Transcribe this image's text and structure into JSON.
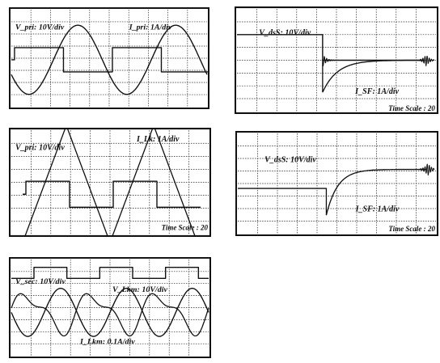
{
  "chart_data": [
    {
      "type": "line",
      "title": "",
      "grid": true,
      "grid_divisions": [
        10,
        8
      ],
      "labels": [
        "V_pri: 10V/div",
        "I_pri: 1A/div"
      ],
      "time_scale": "",
      "series": [
        {
          "kind": "square",
          "amplitude_div": 1,
          "cycles": 2
        },
        {
          "kind": "triangle",
          "amplitude_div": 3,
          "cycles": 2
        }
      ]
    },
    {
      "type": "line",
      "title": "",
      "grid": true,
      "grid_divisions": [
        10,
        8
      ],
      "labels": [
        "V_dsS: 10V/div",
        "I_SF: 1A/div",
        "Time Scale : 20"
      ],
      "time_scale": "Time Scale : 20",
      "series": [
        {
          "kind": "step-with-ringing",
          "level_before_div": 2,
          "level_after_div": 0
        },
        {
          "kind": "exponential-recovery",
          "start_div": -2.5,
          "end_div": 0
        }
      ]
    },
    {
      "type": "line",
      "title": "",
      "grid": true,
      "grid_divisions": [
        10,
        8
      ],
      "labels": [
        "V_pri: 10V/div",
        "I_Lk: 1A/div",
        "Time Scale : 20"
      ],
      "time_scale": "Time Scale : 20",
      "series": [
        {
          "kind": "triangle",
          "amplitude_div": 4.5,
          "cycles": 2
        },
        {
          "kind": "square",
          "amplitude_div": 1,
          "cycles": 2
        }
      ]
    },
    {
      "type": "line",
      "title": "",
      "grid": true,
      "grid_divisions": [
        10,
        8
      ],
      "labels": [
        "V_dsS: 10V/div",
        "I_SF: 1A/div",
        "Time Scale : 20"
      ],
      "time_scale": "Time Scale : 20",
      "series": [
        {
          "kind": "step-with-ringing",
          "level_before_div": 0,
          "level_after_div": 0
        },
        {
          "kind": "exponential-recovery",
          "start_div": -2.0,
          "end_div": 1.0
        }
      ]
    },
    {
      "type": "line",
      "title": "",
      "grid": true,
      "grid_divisions": [
        10,
        8
      ],
      "labels": [
        "V_sec: 10V/div",
        "V_Lkm: 10V/div",
        "I_Lkm: 0.1A/div"
      ],
      "time_scale": "",
      "series": [
        {
          "kind": "square",
          "amplitude_div": 1,
          "cycles": 3
        },
        {
          "kind": "sine",
          "amplitude_div": 2,
          "cycles": 3
        },
        {
          "kind": "distorted-sine",
          "amplitude_div": 2,
          "cycles": 3
        }
      ]
    }
  ]
}
